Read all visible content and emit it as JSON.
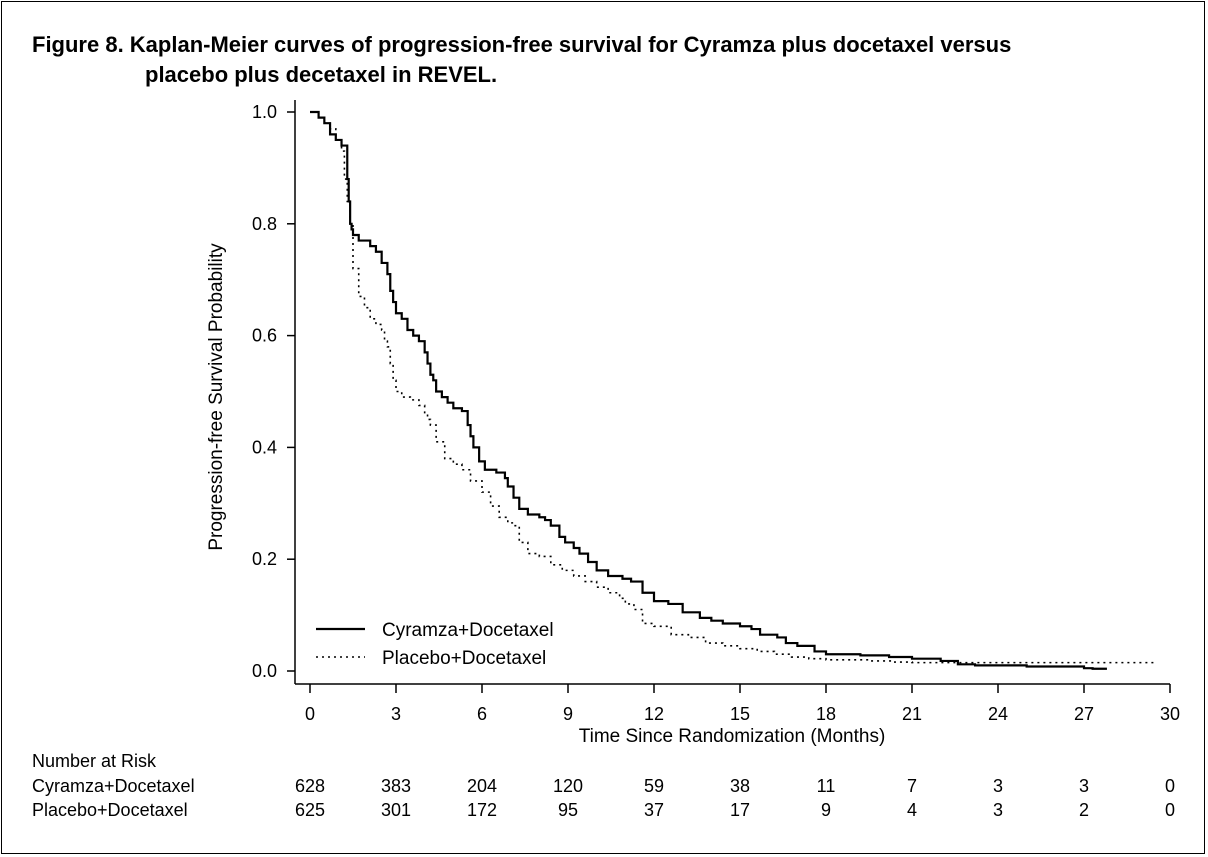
{
  "figure": {
    "title_line1": "Figure 8. Kaplan-Meier curves of progression-free survival for Cyramza plus docetaxel versus",
    "title_line2": "placebo plus decetaxel in REVEL."
  },
  "chart_data": {
    "type": "line",
    "step": true,
    "xlabel": "Time Since Randomization (Months)",
    "ylabel": "Progression-free Survival Probability",
    "xlim": [
      0,
      30
    ],
    "ylim": [
      0,
      1
    ],
    "xticks": [
      0,
      3,
      6,
      9,
      12,
      15,
      18,
      21,
      24,
      27,
      30
    ],
    "yticks": [
      "0.0",
      "0.2",
      "0.4",
      "0.6",
      "0.8",
      "1.0"
    ],
    "grid": false,
    "legend_position": "bottom-left",
    "series": [
      {
        "name": "Cyramza+Docetaxel",
        "style": "solid",
        "x": [
          0,
          0.3,
          0.5,
          0.7,
          0.9,
          1.1,
          1.3,
          1.35,
          1.4,
          1.45,
          1.5,
          1.7,
          1.9,
          2.1,
          2.3,
          2.5,
          2.7,
          2.8,
          2.9,
          3.0,
          3.2,
          3.4,
          3.6,
          3.8,
          4.0,
          4.1,
          4.2,
          4.3,
          4.4,
          4.6,
          4.8,
          5.0,
          5.3,
          5.5,
          5.6,
          5.7,
          5.9,
          6.1,
          6.5,
          6.8,
          6.9,
          7.1,
          7.3,
          7.6,
          8.0,
          8.2,
          8.4,
          8.7,
          8.9,
          9.2,
          9.4,
          9.7,
          10.0,
          10.4,
          10.9,
          11.2,
          11.6,
          12.0,
          12.5,
          13.0,
          13.6,
          14.0,
          14.4,
          15.0,
          15.4,
          15.7,
          16.3,
          16.6,
          17.0,
          17.6,
          18.0,
          19.2,
          20.2,
          21.0,
          22.0,
          22.6,
          23.2,
          24.0,
          25.0,
          26.0,
          27.0,
          27.3,
          27.8
        ],
        "y": [
          1.0,
          0.99,
          0.98,
          0.96,
          0.95,
          0.94,
          0.88,
          0.84,
          0.8,
          0.79,
          0.78,
          0.77,
          0.77,
          0.76,
          0.75,
          0.73,
          0.71,
          0.68,
          0.66,
          0.64,
          0.63,
          0.61,
          0.6,
          0.59,
          0.57,
          0.55,
          0.53,
          0.52,
          0.5,
          0.49,
          0.48,
          0.47,
          0.465,
          0.44,
          0.42,
          0.4,
          0.375,
          0.36,
          0.355,
          0.345,
          0.33,
          0.31,
          0.29,
          0.28,
          0.275,
          0.27,
          0.26,
          0.24,
          0.23,
          0.22,
          0.21,
          0.195,
          0.18,
          0.17,
          0.165,
          0.16,
          0.14,
          0.125,
          0.12,
          0.105,
          0.095,
          0.09,
          0.085,
          0.08,
          0.075,
          0.065,
          0.06,
          0.05,
          0.045,
          0.035,
          0.03,
          0.028,
          0.025,
          0.022,
          0.018,
          0.012,
          0.01,
          0.01,
          0.008,
          0.008,
          0.005,
          0.004,
          0.004
        ]
      },
      {
        "name": "Placebo+Docetaxel",
        "style": "dotted",
        "x": [
          0,
          0.3,
          0.5,
          0.7,
          0.9,
          1.1,
          1.2,
          1.3,
          1.4,
          1.5,
          1.7,
          1.9,
          2.1,
          2.3,
          2.5,
          2.6,
          2.7,
          2.8,
          2.9,
          3.0,
          3.2,
          3.5,
          3.8,
          4.0,
          4.1,
          4.2,
          4.4,
          4.7,
          5.0,
          5.3,
          5.6,
          6.0,
          6.3,
          6.6,
          6.9,
          7.1,
          7.3,
          7.6,
          8.0,
          8.4,
          8.8,
          9.2,
          9.6,
          10.0,
          10.4,
          10.8,
          11.0,
          11.3,
          11.6,
          12.0,
          12.6,
          13.2,
          13.8,
          14.4,
          15.0,
          15.6,
          16.2,
          16.8,
          17.4,
          18.0,
          19.0,
          19.6,
          20.4,
          21.0,
          22.0,
          23.0,
          24.0,
          26.0,
          29.5
        ],
        "y": [
          1.0,
          0.99,
          0.98,
          0.97,
          0.95,
          0.93,
          0.88,
          0.84,
          0.8,
          0.72,
          0.67,
          0.65,
          0.63,
          0.62,
          0.61,
          0.59,
          0.58,
          0.55,
          0.52,
          0.5,
          0.49,
          0.485,
          0.475,
          0.46,
          0.45,
          0.44,
          0.41,
          0.38,
          0.37,
          0.36,
          0.34,
          0.32,
          0.295,
          0.275,
          0.265,
          0.26,
          0.23,
          0.21,
          0.205,
          0.19,
          0.18,
          0.17,
          0.16,
          0.15,
          0.14,
          0.13,
          0.12,
          0.11,
          0.085,
          0.08,
          0.065,
          0.06,
          0.05,
          0.045,
          0.04,
          0.035,
          0.03,
          0.025,
          0.022,
          0.02,
          0.02,
          0.018,
          0.016,
          0.015,
          0.015,
          0.015,
          0.015,
          0.015,
          0.015
        ]
      }
    ]
  },
  "number_at_risk": {
    "header": "Number at Risk",
    "rows": [
      {
        "label": "Cyramza+Docetaxel",
        "values": [
          "628",
          "383",
          "204",
          "120",
          "59",
          "38",
          "11",
          "7",
          "3",
          "3",
          "0"
        ]
      },
      {
        "label": "Placebo+Docetaxel",
        "values": [
          "625",
          "301",
          "172",
          "95",
          "37",
          "17",
          "9",
          "4",
          "3",
          "2",
          "0"
        ]
      }
    ]
  }
}
